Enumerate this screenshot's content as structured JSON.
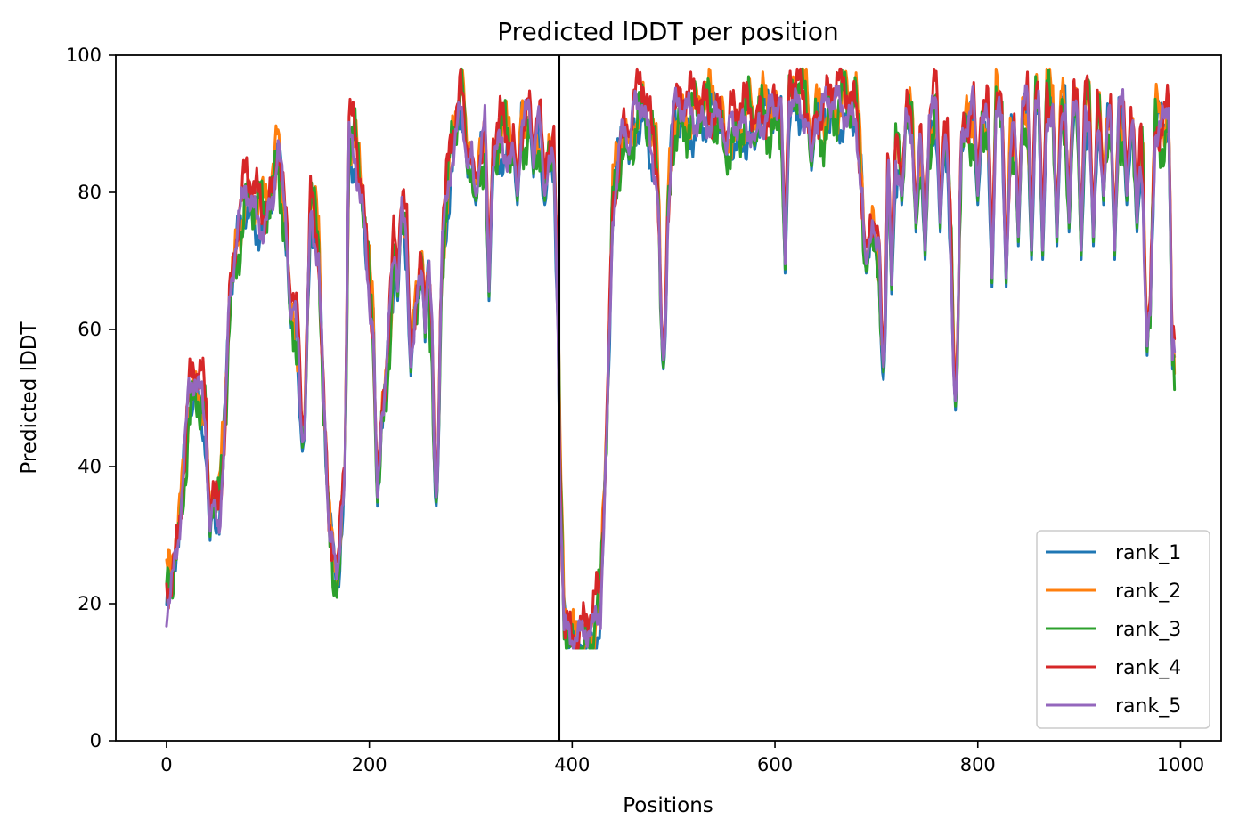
{
  "chart_data": {
    "type": "line",
    "title": "Predicted lDDT per position",
    "xlabel": "Positions",
    "ylabel": "Predicted lDDT",
    "xlim": [
      -50,
      1040
    ],
    "ylim": [
      0,
      100
    ],
    "xticks": [
      0,
      200,
      400,
      600,
      800,
      1000
    ],
    "yticks": [
      0,
      20,
      40,
      60,
      80,
      100
    ],
    "grid": false,
    "legend_position": "lower-right",
    "vline_x": 387,
    "vline_color": "#000000",
    "series": [
      {
        "name": "rank_1",
        "color": "#1f77b4",
        "offset": -1.2,
        "amp": 1.2,
        "phase": 0.0
      },
      {
        "name": "rank_2",
        "color": "#ff7f0e",
        "offset": 0.8,
        "amp": 1.5,
        "phase": 1.3
      },
      {
        "name": "rank_3",
        "color": "#2ca02c",
        "offset": -0.8,
        "amp": 1.8,
        "phase": 2.1
      },
      {
        "name": "rank_4",
        "color": "#d62728",
        "offset": 1.4,
        "amp": 1.4,
        "phase": 3.4
      },
      {
        "name": "rank_5",
        "color": "#9467bd",
        "offset": -0.3,
        "amp": 1.0,
        "phase": 4.6
      }
    ],
    "profile": [
      [
        0,
        21
      ],
      [
        5,
        24
      ],
      [
        12,
        30
      ],
      [
        18,
        42
      ],
      [
        22,
        50
      ],
      [
        28,
        52
      ],
      [
        35,
        50
      ],
      [
        42,
        42
      ],
      [
        48,
        34
      ],
      [
        52,
        33
      ],
      [
        57,
        45
      ],
      [
        62,
        64
      ],
      [
        70,
        74
      ],
      [
        78,
        80
      ],
      [
        85,
        78
      ],
      [
        95,
        76
      ],
      [
        105,
        80
      ],
      [
        110,
        88
      ],
      [
        118,
        74
      ],
      [
        126,
        62
      ],
      [
        132,
        54
      ],
      [
        136,
        46
      ],
      [
        142,
        78
      ],
      [
        150,
        72
      ],
      [
        155,
        50
      ],
      [
        160,
        32
      ],
      [
        165,
        28
      ],
      [
        170,
        27
      ],
      [
        176,
        40
      ],
      [
        180,
        88
      ],
      [
        186,
        86
      ],
      [
        194,
        78
      ],
      [
        200,
        66
      ],
      [
        206,
        58
      ],
      [
        210,
        44
      ],
      [
        216,
        52
      ],
      [
        224,
        70
      ],
      [
        230,
        80
      ],
      [
        236,
        74
      ],
      [
        244,
        62
      ],
      [
        250,
        68
      ],
      [
        256,
        78
      ],
      [
        262,
        58
      ],
      [
        266,
        38
      ],
      [
        272,
        72
      ],
      [
        280,
        84
      ],
      [
        290,
        94
      ],
      [
        298,
        88
      ],
      [
        305,
        82
      ],
      [
        315,
        90
      ],
      [
        322,
        85
      ],
      [
        330,
        88
      ],
      [
        340,
        86
      ],
      [
        350,
        90
      ],
      [
        362,
        92
      ],
      [
        372,
        86
      ],
      [
        382,
        85
      ],
      [
        386,
        62
      ],
      [
        388,
        40
      ],
      [
        392,
        18
      ],
      [
        400,
        15
      ],
      [
        410,
        14.5
      ],
      [
        420,
        16
      ],
      [
        428,
        20
      ],
      [
        434,
        45
      ],
      [
        440,
        78
      ],
      [
        448,
        88
      ],
      [
        460,
        91
      ],
      [
        470,
        93
      ],
      [
        478,
        87
      ],
      [
        484,
        83
      ],
      [
        490,
        57
      ],
      [
        494,
        76
      ],
      [
        500,
        92
      ],
      [
        520,
        91
      ],
      [
        540,
        92
      ],
      [
        560,
        89
      ],
      [
        580,
        91
      ],
      [
        600,
        92
      ],
      [
        620,
        94
      ],
      [
        640,
        91
      ],
      [
        660,
        93
      ],
      [
        680,
        92
      ],
      [
        690,
        72
      ],
      [
        700,
        78
      ],
      [
        707,
        57
      ],
      [
        712,
        90
      ],
      [
        720,
        84
      ],
      [
        730,
        92
      ],
      [
        745,
        86
      ],
      [
        760,
        93
      ],
      [
        770,
        86
      ],
      [
        778,
        54
      ],
      [
        784,
        88
      ],
      [
        795,
        92
      ],
      [
        810,
        90
      ],
      [
        820,
        94
      ],
      [
        830,
        86
      ],
      [
        840,
        92
      ],
      [
        860,
        94
      ],
      [
        880,
        92
      ],
      [
        900,
        93
      ],
      [
        920,
        90
      ],
      [
        940,
        92
      ],
      [
        960,
        88
      ],
      [
        970,
        64
      ],
      [
        975,
        90
      ],
      [
        985,
        90
      ],
      [
        990,
        94
      ],
      [
        994,
        57
      ]
    ],
    "dips": [
      [
        43,
        31
      ],
      [
        110,
        88
      ],
      [
        123,
        62
      ],
      [
        134,
        44
      ],
      [
        168,
        24
      ],
      [
        208,
        36
      ],
      [
        228,
        66
      ],
      [
        241,
        55
      ],
      [
        255,
        60
      ],
      [
        266,
        36
      ],
      [
        297,
        84
      ],
      [
        305,
        80
      ],
      [
        318,
        66
      ],
      [
        346,
        80
      ],
      [
        362,
        84
      ],
      [
        373,
        80
      ],
      [
        428,
        48
      ],
      [
        456,
        86
      ],
      [
        490,
        56
      ],
      [
        552,
        86
      ],
      [
        580,
        88
      ],
      [
        610,
        70
      ],
      [
        636,
        85
      ],
      [
        690,
        70
      ],
      [
        700,
        72
      ],
      [
        707,
        55
      ],
      [
        715,
        67
      ],
      [
        725,
        80
      ],
      [
        739,
        76
      ],
      [
        748,
        72
      ],
      [
        763,
        76
      ],
      [
        778,
        50
      ],
      [
        800,
        80
      ],
      [
        814,
        68
      ],
      [
        828,
        68
      ],
      [
        840,
        74
      ],
      [
        853,
        72
      ],
      [
        864,
        72
      ],
      [
        878,
        74
      ],
      [
        890,
        76
      ],
      [
        902,
        72
      ],
      [
        914,
        74
      ],
      [
        924,
        80
      ],
      [
        935,
        72
      ],
      [
        947,
        80
      ],
      [
        957,
        76
      ],
      [
        967,
        58
      ],
      [
        992,
        56
      ]
    ],
    "npoints": 995
  }
}
